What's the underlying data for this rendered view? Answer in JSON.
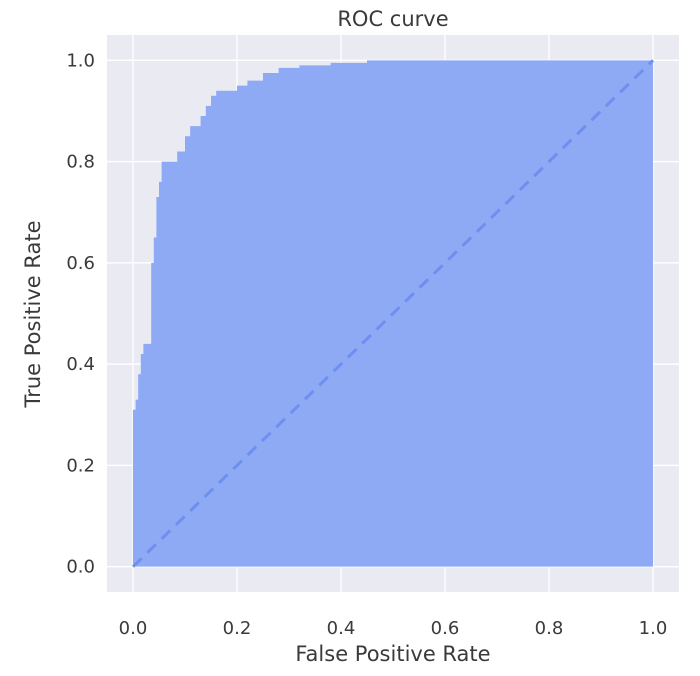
{
  "chart_data": {
    "type": "area",
    "title": "ROC curve",
    "xlabel": "False Positive Rate",
    "ylabel": "True Positive Rate",
    "xlim": [
      -0.05,
      1.05
    ],
    "ylim": [
      -0.05,
      1.05
    ],
    "xticks": [
      0.0,
      0.2,
      0.4,
      0.6,
      0.8,
      1.0
    ],
    "yticks": [
      0.0,
      0.2,
      0.4,
      0.6,
      0.8,
      1.0
    ],
    "xtick_labels": [
      "0.0",
      "0.2",
      "0.4",
      "0.6",
      "0.8",
      "1.0"
    ],
    "ytick_labels": [
      "0.0",
      "0.2",
      "0.4",
      "0.6",
      "0.8",
      "1.0"
    ],
    "grid": true,
    "legend": "none",
    "series": [
      {
        "role": "roc-curve-filled",
        "color": "#8eaaf5",
        "x": [
          0.0,
          0.0,
          0.005,
          0.005,
          0.01,
          0.01,
          0.015,
          0.015,
          0.02,
          0.02,
          0.035,
          0.035,
          0.04,
          0.04,
          0.045,
          0.045,
          0.05,
          0.05,
          0.055,
          0.055,
          0.085,
          0.085,
          0.1,
          0.1,
          0.11,
          0.11,
          0.13,
          0.13,
          0.14,
          0.14,
          0.15,
          0.15,
          0.16,
          0.16,
          0.2,
          0.2,
          0.22,
          0.22,
          0.25,
          0.25,
          0.28,
          0.28,
          0.32,
          0.32,
          0.38,
          0.38,
          0.45,
          0.45,
          1.0
        ],
        "y": [
          0.0,
          0.31,
          0.31,
          0.33,
          0.33,
          0.38,
          0.38,
          0.42,
          0.42,
          0.44,
          0.44,
          0.6,
          0.6,
          0.65,
          0.65,
          0.73,
          0.73,
          0.76,
          0.76,
          0.8,
          0.8,
          0.82,
          0.82,
          0.85,
          0.85,
          0.87,
          0.87,
          0.89,
          0.89,
          0.91,
          0.91,
          0.93,
          0.93,
          0.94,
          0.94,
          0.95,
          0.95,
          0.96,
          0.96,
          0.975,
          0.975,
          0.985,
          0.985,
          0.99,
          0.99,
          0.995,
          0.995,
          1.0,
          1.0
        ]
      },
      {
        "role": "chance-diagonal",
        "color": "#6f8ff0",
        "style": "dashed",
        "x": [
          0.0,
          1.0
        ],
        "y": [
          0.0,
          1.0
        ]
      }
    ]
  }
}
